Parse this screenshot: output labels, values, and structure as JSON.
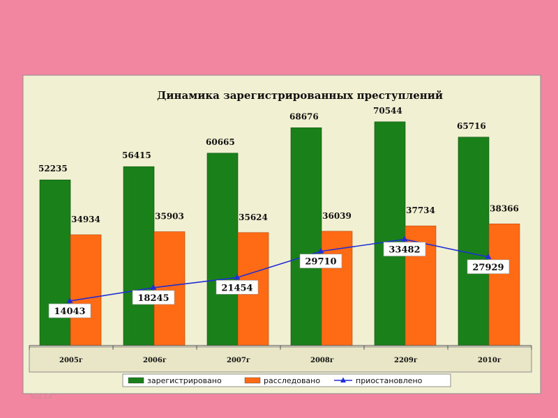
{
  "slide": {
    "footer_date": "6.3.13"
  },
  "colors": {
    "page_bg": "#f2859f",
    "frame_bg": "#f2f0d2",
    "green": "#1a801a",
    "orange": "#ff6a14",
    "line": "#1f2ed6",
    "label_bg": "#ffffff"
  },
  "chart_data": {
    "type": "bar",
    "title": "Динамика зарегистрированных преступлений",
    "xlabel": "",
    "ylabel": "",
    "ylim": [
      0,
      76000
    ],
    "grid": false,
    "legend_position": "bottom",
    "categories": [
      "2005г",
      "2006г",
      "2007г",
      "2008г",
      "2209г",
      "2010г"
    ],
    "series": [
      {
        "name": "зарегистрировано",
        "type": "bar",
        "color": "#1a801a",
        "values": [
          52235,
          56415,
          60665,
          68676,
          70544,
          65716
        ]
      },
      {
        "name": "расследовано",
        "type": "bar",
        "color": "#ff6a14",
        "values": [
          34934,
          35903,
          35624,
          36039,
          37734,
          38366
        ]
      },
      {
        "name": "приостановлено",
        "type": "line",
        "marker": "triangle",
        "color": "#1f2ed6",
        "values": [
          14043,
          18245,
          21454,
          29710,
          33482,
          27929
        ]
      }
    ]
  }
}
